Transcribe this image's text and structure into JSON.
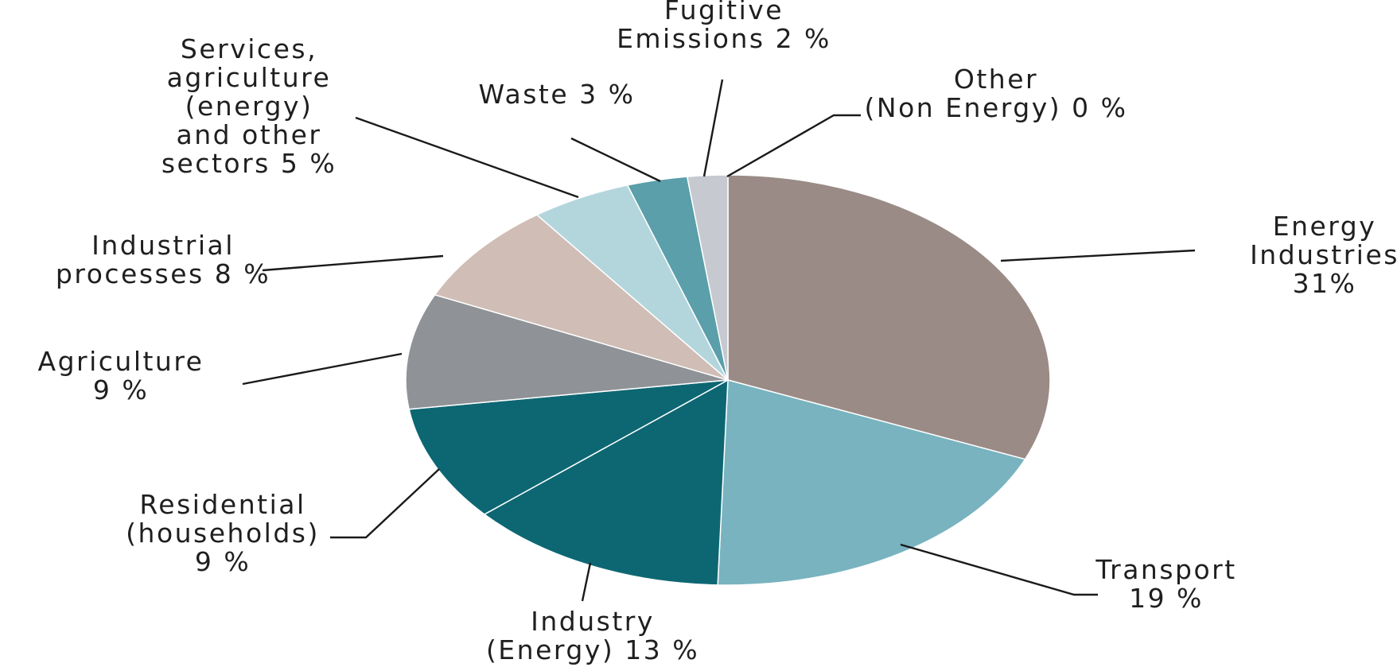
{
  "chart_data": {
    "type": "pie",
    "title": "",
    "start": "12 o'clock",
    "direction": "clockwise",
    "slices": [
      {
        "name": "Energy Industries",
        "value": 31,
        "label_lines": [
          "Energy",
          "Industries",
          "31%"
        ],
        "color": "#9a8b86"
      },
      {
        "name": "Transport",
        "value": 19,
        "label_lines": [
          "Transport",
          "19 %"
        ],
        "color": "#78b3bf"
      },
      {
        "name": "Industry (Energy)",
        "value": 13,
        "label_lines": [
          "Industry",
          "(Energy) 13 %"
        ],
        "color": "#0d6773"
      },
      {
        "name": "Residential (households)",
        "value": 9,
        "label_lines": [
          "Residential",
          "(households)",
          "9 %"
        ],
        "color": "#0d6773"
      },
      {
        "name": "Agriculture",
        "value": 9,
        "label_lines": [
          "Agriculture",
          "9 %"
        ],
        "color": "#8f9397"
      },
      {
        "name": "Industrial processes",
        "value": 8,
        "label_lines": [
          "Industrial",
          "processes 8 %"
        ],
        "color": "#cfbdb6"
      },
      {
        "name": "Services, agriculture (energy) and other sectors",
        "value": 5,
        "label_lines": [
          "Services,",
          "agriculture",
          "(energy)",
          "and other",
          "sectors 5 %"
        ],
        "color": "#b3d6dd"
      },
      {
        "name": "Waste",
        "value": 3,
        "label_lines": [
          "Waste 3 %"
        ],
        "color": "#5a9fa9"
      },
      {
        "name": "Fugitive Emissions",
        "value": 2,
        "label_lines": [
          "Fugitive",
          "Emissions 2 %"
        ],
        "color": "#c6c9cf"
      },
      {
        "name": "Other (Non Energy)",
        "value": 0,
        "label_lines": [
          "Other",
          "(Non Energy) 0 %"
        ],
        "color": "#c6c9cf"
      }
    ]
  }
}
